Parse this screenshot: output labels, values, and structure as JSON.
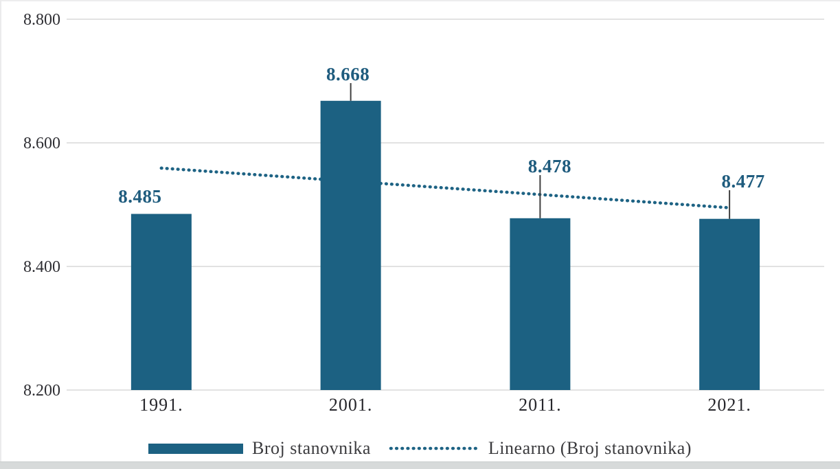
{
  "chart_data": {
    "type": "bar",
    "title": "",
    "categories": [
      "1991.",
      "2001.",
      "2011.",
      "2021."
    ],
    "series": [
      {
        "name": "Broj stanovnika",
        "values": [
          8485,
          8668,
          8478,
          8477
        ],
        "data_labels": [
          "8.485",
          "8.668",
          "8.478",
          "8.477"
        ]
      }
    ],
    "trendline": {
      "label": "Linearno (Broj stanovnika)",
      "kind": "linear-fit",
      "style": "dotted"
    },
    "y_axis": {
      "min": 8200,
      "max": 8800,
      "ticks": [
        8200,
        8400,
        8600,
        8800
      ],
      "tick_labels": [
        "8.200",
        "8.400",
        "8.600",
        "8.800"
      ]
    },
    "x_axis": {
      "tick_labels": [
        "1991.",
        "2001.",
        "2011.",
        "2021."
      ]
    },
    "grid": "horizontal",
    "legend_position": "bottom",
    "colors": {
      "bar": "#1c6182",
      "trend": "#1e6384",
      "value_label": "#1f5c7e",
      "axis_text": "#2e2e33",
      "x_axis_text": "#26262b",
      "gridline": "#d9d9d9",
      "leader_line": "#3f3f3f",
      "legend_text": "#3b3b3e"
    },
    "label_layout": {
      "dx": [
        -31,
        -4,
        14,
        20
      ],
      "bottom_y": [
        295,
        117,
        251,
        273
      ],
      "leader": [
        false,
        true,
        true,
        true
      ]
    }
  },
  "legend": {
    "items": [
      {
        "label": "Broj stanovnika",
        "swatch": "bar"
      },
      {
        "label": "Linearno (Broj stanovnika)",
        "swatch": "dotted-line"
      }
    ]
  }
}
